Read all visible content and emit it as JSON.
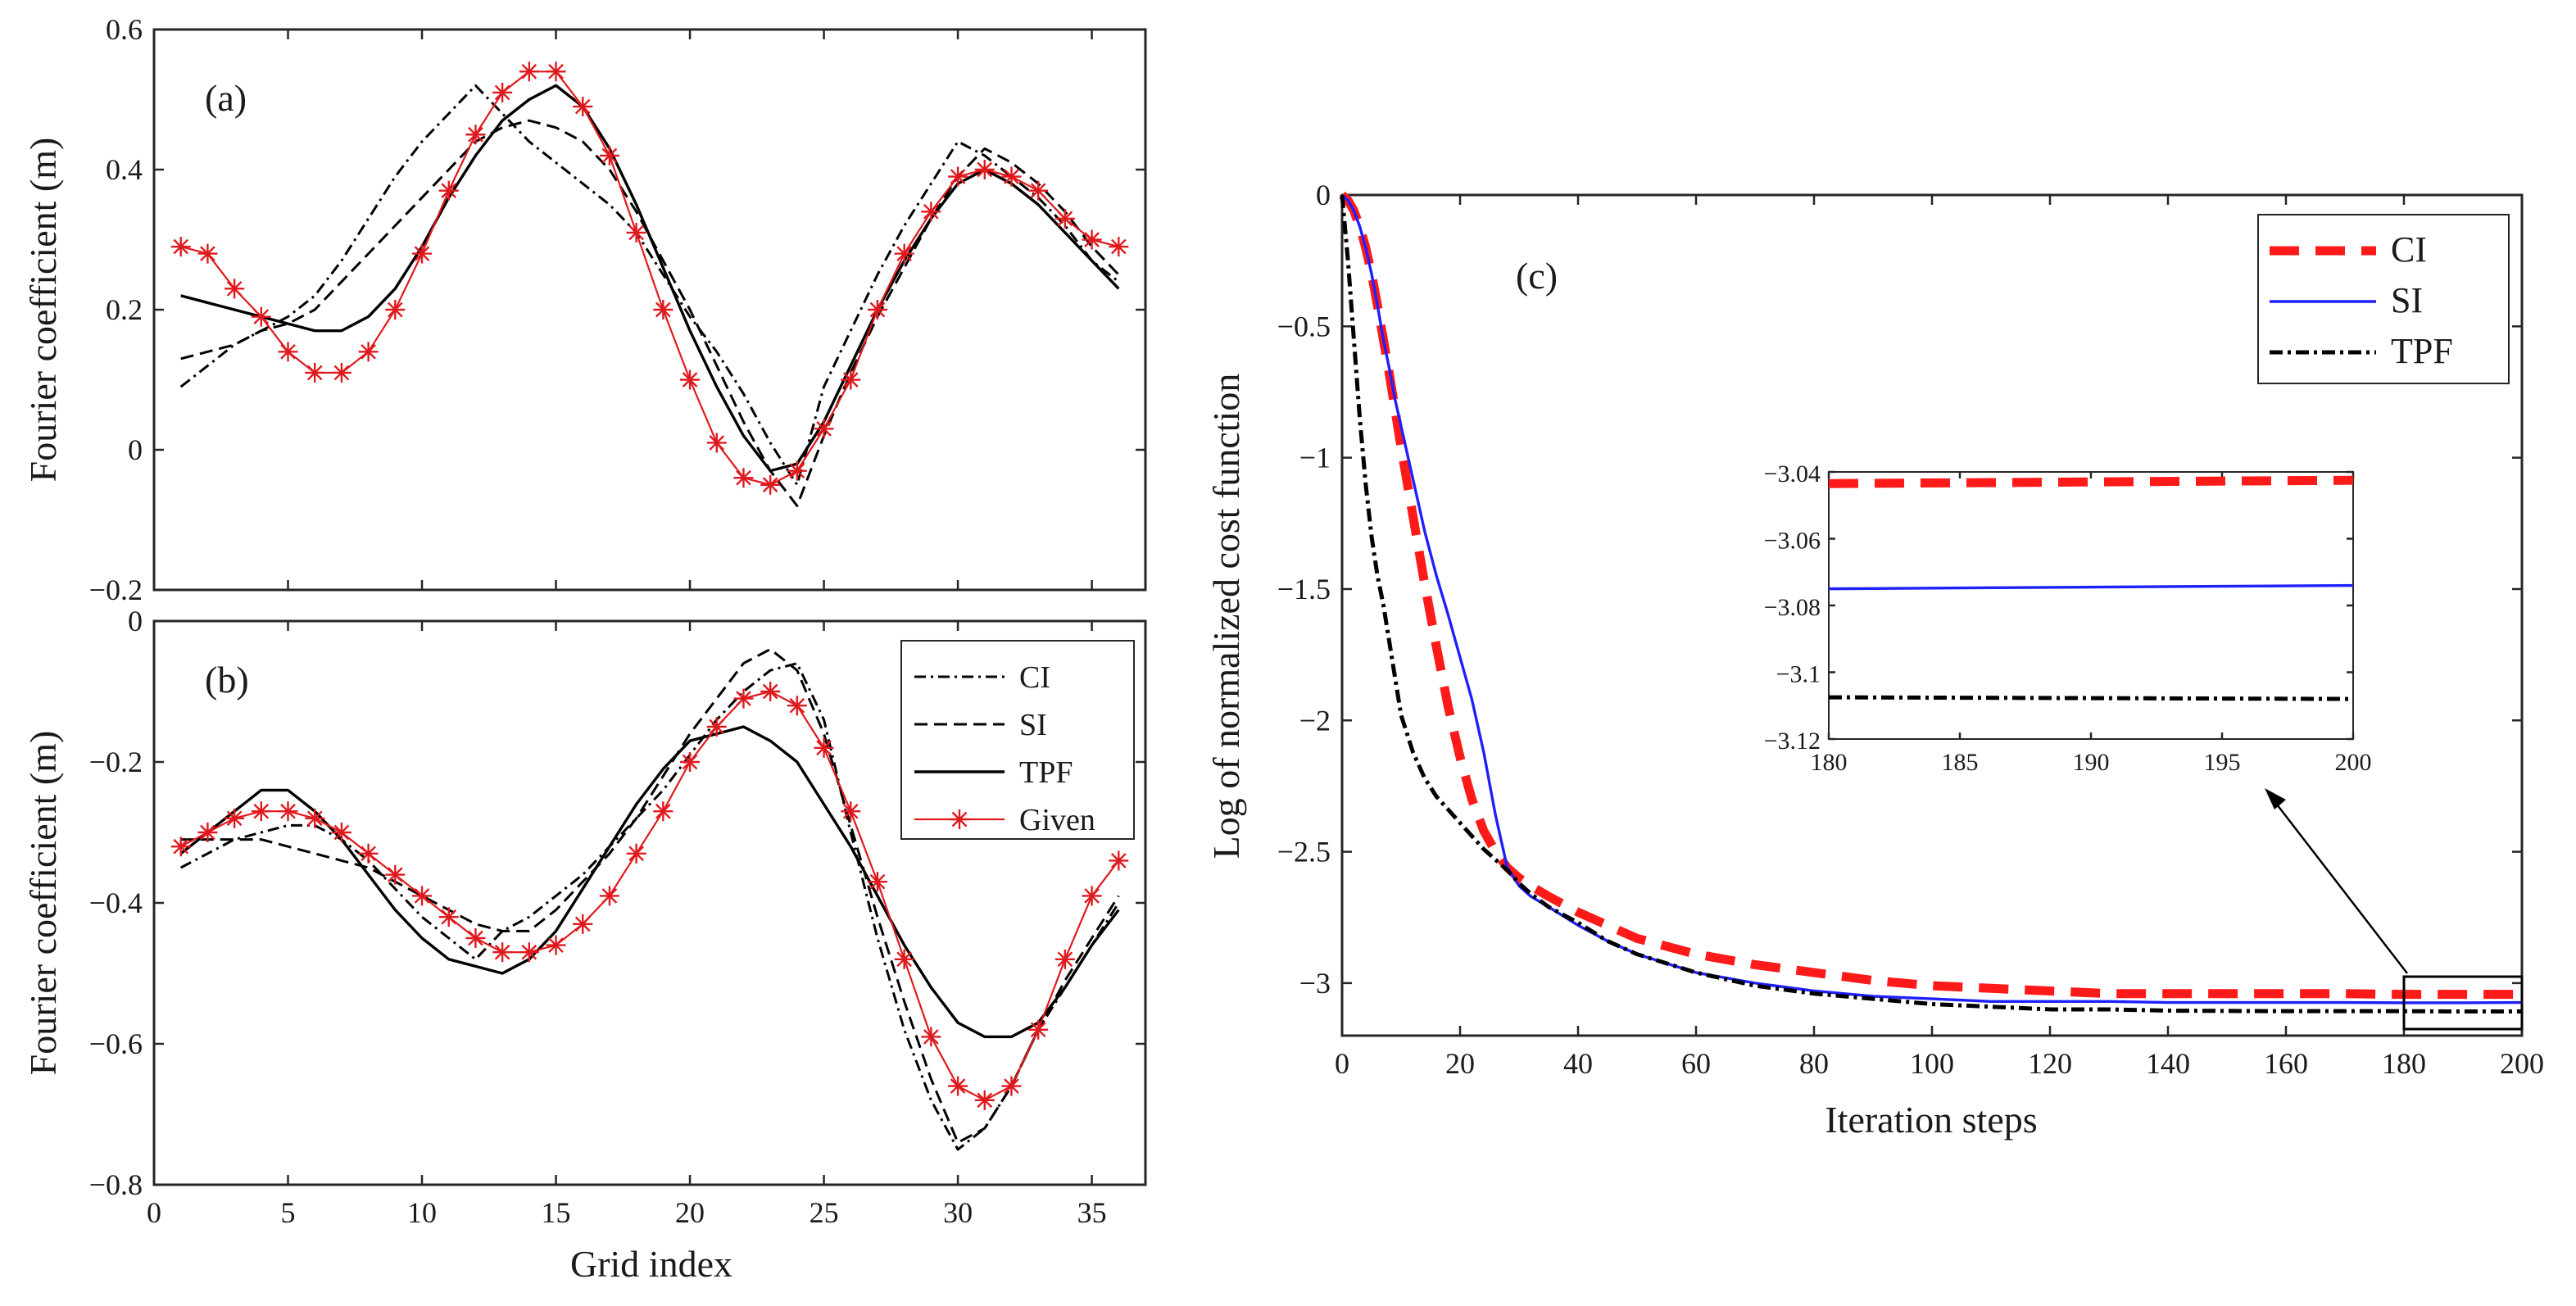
{
  "colors": {
    "ci_c": "#ff1a1a",
    "si_c": "#1f1fff",
    "tpf_c": "#000000",
    "given": "#e0191e",
    "axes": "#262626"
  },
  "chart_data": [
    {
      "id": "a",
      "type": "line",
      "panel_label": "(a)",
      "ylabel": "Fourier coefficient (m)",
      "xlabel": "",
      "xlim": [
        0,
        37
      ],
      "ylim": [
        -0.2,
        0.6
      ],
      "xticks": [
        0,
        5,
        10,
        15,
        20,
        25,
        30,
        35
      ],
      "show_xticklabels": false,
      "yticks": [
        -0.2,
        0,
        0.2,
        0.4,
        0.6
      ],
      "ytick_labels": [
        "−0.2",
        "0",
        "0.2",
        "0.4",
        "0.6"
      ],
      "x": [
        1,
        2,
        3,
        4,
        5,
        6,
        7,
        8,
        9,
        10,
        11,
        12,
        13,
        14,
        15,
        16,
        17,
        18,
        19,
        20,
        21,
        22,
        23,
        24,
        25,
        26,
        27,
        28,
        29,
        30,
        31,
        32,
        33,
        34,
        35,
        36
      ],
      "series": [
        {
          "name": "CI",
          "style": "dashdot",
          "values": [
            0.09,
            0.12,
            0.15,
            0.17,
            0.19,
            0.22,
            0.27,
            0.33,
            0.39,
            0.44,
            0.48,
            0.52,
            0.48,
            0.44,
            0.41,
            0.38,
            0.35,
            0.31,
            0.25,
            0.19,
            0.14,
            0.08,
            0.01,
            -0.05,
            0.09,
            0.17,
            0.25,
            0.32,
            0.38,
            0.44,
            0.42,
            0.39,
            0.36,
            0.32,
            0.27,
            0.24
          ]
        },
        {
          "name": "SI",
          "style": "dashed",
          "values": [
            0.13,
            0.14,
            0.15,
            0.17,
            0.18,
            0.2,
            0.24,
            0.28,
            0.32,
            0.36,
            0.4,
            0.44,
            0.46,
            0.47,
            0.46,
            0.44,
            0.4,
            0.34,
            0.27,
            0.2,
            0.12,
            0.04,
            -0.03,
            -0.08,
            0.02,
            0.11,
            0.19,
            0.26,
            0.33,
            0.39,
            0.43,
            0.41,
            0.38,
            0.34,
            0.29,
            0.25
          ]
        },
        {
          "name": "TPF",
          "style": "solid",
          "values": [
            0.22,
            0.21,
            0.2,
            0.19,
            0.18,
            0.17,
            0.17,
            0.19,
            0.23,
            0.29,
            0.36,
            0.42,
            0.47,
            0.5,
            0.52,
            0.49,
            0.43,
            0.35,
            0.26,
            0.17,
            0.09,
            0.02,
            -0.03,
            -0.02,
            0.04,
            0.12,
            0.2,
            0.27,
            0.33,
            0.38,
            0.4,
            0.38,
            0.35,
            0.31,
            0.27,
            0.23
          ]
        },
        {
          "name": "Given",
          "style": "marker",
          "values": [
            0.29,
            0.28,
            0.23,
            0.19,
            0.14,
            0.11,
            0.11,
            0.14,
            0.2,
            0.28,
            0.37,
            0.45,
            0.51,
            0.54,
            0.54,
            0.49,
            0.42,
            0.31,
            0.2,
            0.1,
            0.01,
            -0.04,
            -0.05,
            -0.03,
            0.03,
            0.1,
            0.2,
            0.28,
            0.34,
            0.39,
            0.4,
            0.39,
            0.37,
            0.33,
            0.3,
            0.29
          ]
        }
      ]
    },
    {
      "id": "b",
      "type": "line",
      "panel_label": "(b)",
      "ylabel": "Fourier coefficient (m)",
      "xlabel": "Grid index",
      "xlim": [
        0,
        37
      ],
      "ylim": [
        -0.8,
        0
      ],
      "xticks": [
        0,
        5,
        10,
        15,
        20,
        25,
        30,
        35
      ],
      "show_xticklabels": true,
      "yticks": [
        -0.8,
        -0.6,
        -0.4,
        -0.2,
        0
      ],
      "ytick_labels": [
        "−0.8",
        "−0.6",
        "−0.4",
        "−0.2",
        "0"
      ],
      "legend": [
        "CI",
        "SI",
        "TPF",
        "Given"
      ],
      "x": [
        1,
        2,
        3,
        4,
        5,
        6,
        7,
        8,
        9,
        10,
        11,
        12,
        13,
        14,
        15,
        16,
        17,
        18,
        19,
        20,
        21,
        22,
        23,
        24,
        25,
        26,
        27,
        28,
        29,
        30,
        31,
        32,
        33,
        34,
        35,
        36
      ],
      "series": [
        {
          "name": "CI",
          "style": "dashdot",
          "values": [
            -0.35,
            -0.33,
            -0.31,
            -0.3,
            -0.29,
            -0.29,
            -0.31,
            -0.34,
            -0.38,
            -0.42,
            -0.45,
            -0.48,
            -0.44,
            -0.42,
            -0.39,
            -0.36,
            -0.32,
            -0.28,
            -0.24,
            -0.19,
            -0.14,
            -0.1,
            -0.07,
            -0.06,
            -0.14,
            -0.3,
            -0.45,
            -0.58,
            -0.68,
            -0.75,
            -0.72,
            -0.66,
            -0.58,
            -0.52,
            -0.46,
            -0.4
          ]
        },
        {
          "name": "SI",
          "style": "dashed",
          "values": [
            -0.31,
            -0.31,
            -0.31,
            -0.31,
            -0.32,
            -0.33,
            -0.34,
            -0.35,
            -0.37,
            -0.39,
            -0.41,
            -0.43,
            -0.44,
            -0.44,
            -0.41,
            -0.37,
            -0.33,
            -0.28,
            -0.22,
            -0.16,
            -0.11,
            -0.06,
            -0.04,
            -0.07,
            -0.16,
            -0.29,
            -0.42,
            -0.54,
            -0.65,
            -0.74,
            -0.72,
            -0.66,
            -0.58,
            -0.51,
            -0.45,
            -0.39
          ]
        },
        {
          "name": "TPF",
          "style": "solid",
          "values": [
            -0.33,
            -0.3,
            -0.27,
            -0.24,
            -0.24,
            -0.27,
            -0.31,
            -0.36,
            -0.41,
            -0.45,
            -0.48,
            -0.49,
            -0.5,
            -0.48,
            -0.44,
            -0.38,
            -0.32,
            -0.26,
            -0.21,
            -0.17,
            -0.16,
            -0.15,
            -0.17,
            -0.2,
            -0.26,
            -0.32,
            -0.39,
            -0.46,
            -0.52,
            -0.57,
            -0.59,
            -0.59,
            -0.57,
            -0.52,
            -0.46,
            -0.41
          ]
        },
        {
          "name": "Given",
          "style": "marker",
          "values": [
            -0.32,
            -0.3,
            -0.28,
            -0.27,
            -0.27,
            -0.28,
            -0.3,
            -0.33,
            -0.36,
            -0.39,
            -0.42,
            -0.45,
            -0.47,
            -0.47,
            -0.46,
            -0.43,
            -0.39,
            -0.33,
            -0.27,
            -0.2,
            -0.15,
            -0.11,
            -0.1,
            -0.12,
            -0.18,
            -0.27,
            -0.37,
            -0.48,
            -0.59,
            -0.66,
            -0.68,
            -0.66,
            -0.58,
            -0.48,
            -0.39,
            -0.34
          ]
        }
      ]
    },
    {
      "id": "c",
      "type": "line",
      "panel_label": "(c)",
      "ylabel": "Log of normalized cost function",
      "xlabel": "Iteration steps",
      "xlim": [
        0,
        200
      ],
      "ylim": [
        -3.2,
        0
      ],
      "xticks": [
        0,
        20,
        40,
        60,
        80,
        100,
        120,
        140,
        160,
        180,
        200
      ],
      "yticks": [
        -3,
        -2.5,
        -2,
        -1.5,
        -1,
        -0.5,
        0
      ],
      "ytick_labels": [
        "−3",
        "−2.5",
        "−2",
        "−1.5",
        "−1",
        "−0.5",
        "0"
      ],
      "legend": [
        "CI",
        "SI",
        "TPF"
      ],
      "x": [
        0,
        1,
        2,
        3,
        4,
        5,
        6,
        7,
        8,
        9,
        10,
        12,
        14,
        16,
        18,
        20,
        22,
        24,
        26,
        28,
        30,
        32,
        35,
        40,
        45,
        50,
        60,
        70,
        80,
        90,
        100,
        110,
        120,
        130,
        140,
        150,
        160,
        170,
        180,
        190,
        200
      ],
      "series": [
        {
          "name": "CI",
          "style": "thickdashed",
          "values": [
            0,
            -0.02,
            -0.06,
            -0.12,
            -0.2,
            -0.3,
            -0.42,
            -0.55,
            -0.68,
            -0.82,
            -0.96,
            -1.22,
            -1.48,
            -1.72,
            -1.95,
            -2.14,
            -2.3,
            -2.42,
            -2.5,
            -2.56,
            -2.6,
            -2.63,
            -2.67,
            -2.73,
            -2.78,
            -2.83,
            -2.89,
            -2.93,
            -2.96,
            -2.99,
            -3.01,
            -3.02,
            -3.03,
            -3.04,
            -3.04,
            -3.04,
            -3.04,
            -3.04,
            -3.043,
            -3.043,
            -3.043
          ]
        },
        {
          "name": "SI",
          "style": "solid",
          "values": [
            0,
            -0.02,
            -0.06,
            -0.12,
            -0.2,
            -0.3,
            -0.42,
            -0.55,
            -0.66,
            -0.78,
            -0.88,
            -1.08,
            -1.28,
            -1.45,
            -1.6,
            -1.76,
            -1.92,
            -2.12,
            -2.36,
            -2.56,
            -2.63,
            -2.67,
            -2.71,
            -2.78,
            -2.84,
            -2.89,
            -2.96,
            -3,
            -3.03,
            -3.05,
            -3.06,
            -3.07,
            -3.07,
            -3.07,
            -3.074,
            -3.074,
            -3.074,
            -3.074,
            -3.075,
            -3.075,
            -3.074
          ]
        },
        {
          "name": "TPF",
          "style": "dashdot",
          "values": [
            0,
            -0.25,
            -0.55,
            -0.85,
            -1.1,
            -1.3,
            -1.45,
            -1.56,
            -1.7,
            -1.84,
            -1.98,
            -2.12,
            -2.22,
            -2.29,
            -2.34,
            -2.39,
            -2.44,
            -2.49,
            -2.53,
            -2.57,
            -2.62,
            -2.66,
            -2.71,
            -2.77,
            -2.84,
            -2.89,
            -2.96,
            -3.01,
            -3.04,
            -3.06,
            -3.08,
            -3.09,
            -3.1,
            -3.1,
            -3.105,
            -3.106,
            -3.107,
            -3.107,
            -3.107,
            -3.108,
            -3.108
          ]
        }
      ]
    },
    {
      "id": "c_inset",
      "type": "line",
      "panel_label": "",
      "xlim": [
        180,
        200
      ],
      "ylim": [
        -3.12,
        -3.04
      ],
      "xticks": [
        180,
        185,
        190,
        195,
        200
      ],
      "yticks": [
        -3.12,
        -3.1,
        -3.08,
        -3.06,
        -3.04
      ],
      "ytick_labels": [
        "−3.12",
        "−3.1",
        "−3.08",
        "−3.06",
        "−3.04"
      ],
      "x": [
        180,
        200
      ],
      "series": [
        {
          "name": "CI",
          "style": "thickdashed",
          "values": [
            -3.0435,
            -3.0425
          ]
        },
        {
          "name": "SI",
          "style": "solid",
          "values": [
            -3.075,
            -3.074
          ]
        },
        {
          "name": "TPF",
          "style": "dashdot",
          "values": [
            -3.1075,
            -3.108
          ]
        }
      ]
    }
  ]
}
